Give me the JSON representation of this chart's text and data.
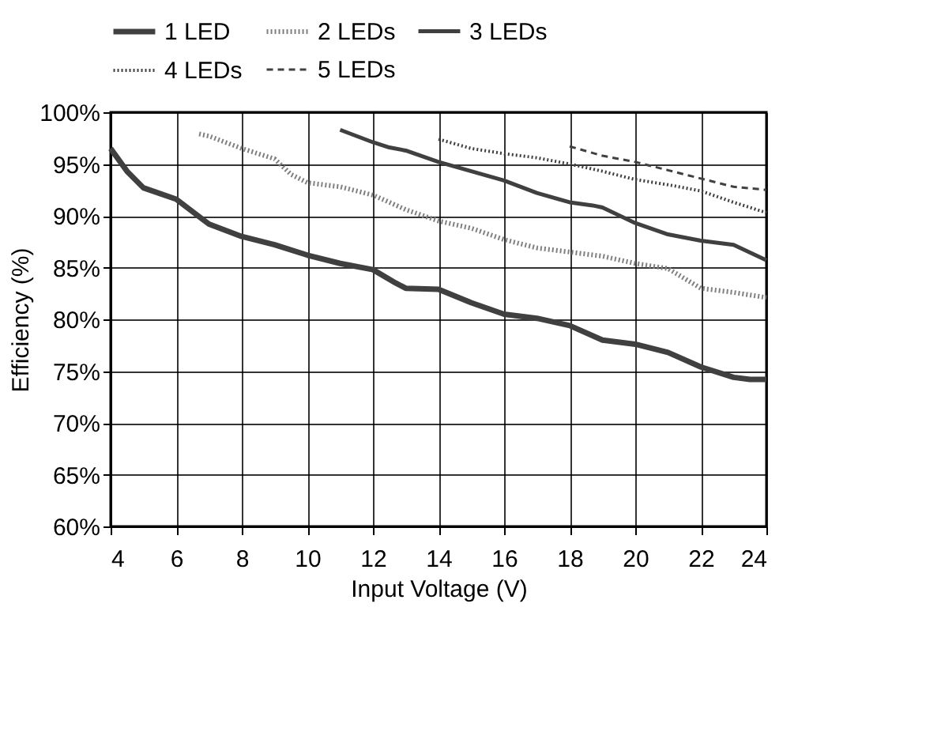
{
  "chart_data": {
    "type": "line",
    "xlabel": "Input Voltage (V)",
    "ylabel": "Efficiency (%)",
    "xlim": [
      4,
      24
    ],
    "xticks": [
      4,
      6,
      8,
      10,
      12,
      14,
      16,
      18,
      20,
      22,
      24
    ],
    "ylim": [
      60,
      100
    ],
    "yticks": [
      {
        "value": 60,
        "label": "60%"
      },
      {
        "value": 65,
        "label": "65%"
      },
      {
        "value": 70,
        "label": "70%"
      },
      {
        "value": 75,
        "label": "75%"
      },
      {
        "value": 80,
        "label": "80%"
      },
      {
        "value": 85,
        "label": "85%"
      },
      {
        "value": 90,
        "label": "90%"
      },
      {
        "value": 95,
        "label": "95%"
      },
      {
        "value": 100,
        "label": "100%"
      }
    ],
    "grid": true,
    "legend": "top",
    "marker": "none",
    "series": [
      {
        "name": "1 LED",
        "color": "#404040",
        "line_style": "solid",
        "x": [
          4,
          4.5,
          5,
          6,
          7,
          8,
          9,
          10,
          11,
          12,
          12.7,
          13,
          14,
          15,
          16,
          17,
          18,
          19,
          20,
          21,
          22,
          23,
          23.5,
          24
        ],
        "values": [
          96.5,
          94.3,
          92.7,
          91.6,
          89.2,
          88,
          87.2,
          86.2,
          85.4,
          84.8,
          83.5,
          83,
          82.9,
          81.6,
          80.5,
          80.1,
          79.4,
          78,
          77.6,
          76.8,
          75.4,
          74.4,
          74.2,
          74.2
        ]
      },
      {
        "name": "2 LEDs",
        "color": "#808080",
        "line_style": "dotted",
        "x": [
          6.7,
          7,
          8,
          9,
          9.5,
          10,
          11,
          12,
          13,
          14,
          15,
          16,
          17,
          18,
          19,
          20,
          21,
          22,
          23,
          24
        ],
        "values": [
          97.9,
          97.7,
          96.5,
          95.5,
          94,
          93.2,
          92.8,
          92,
          90.6,
          89.5,
          88.8,
          87.7,
          86.9,
          86.5,
          86.1,
          85.4,
          84.9,
          83,
          82.6,
          82.1
        ]
      },
      {
        "name": "3 LEDs",
        "color": "#404040",
        "line_style": "solid",
        "x": [
          11,
          12,
          12.5,
          13,
          14,
          15,
          16,
          17,
          18,
          18.7,
          19,
          20,
          21,
          22,
          23,
          24
        ],
        "values": [
          98.3,
          97.1,
          96.6,
          96.3,
          95.2,
          94.3,
          93.4,
          92.2,
          91.3,
          91,
          90.8,
          89.3,
          88.2,
          87.6,
          87.2,
          85.7
        ]
      },
      {
        "name": "4 LEDs",
        "color": "#404040",
        "line_style": "dotted",
        "x": [
          14,
          15,
          16,
          17,
          18,
          19,
          20,
          21,
          22,
          23,
          24
        ],
        "values": [
          97.4,
          96.5,
          96,
          95.6,
          95,
          94.3,
          93.5,
          93,
          92.4,
          91.3,
          90.3
        ]
      },
      {
        "name": "5 LEDs",
        "color": "#404040",
        "line_style": "dashed",
        "x": [
          18,
          19,
          20,
          21,
          22,
          23,
          24
        ],
        "values": [
          96.7,
          95.8,
          95.2,
          94.4,
          93.6,
          92.8,
          92.5
        ]
      }
    ]
  }
}
